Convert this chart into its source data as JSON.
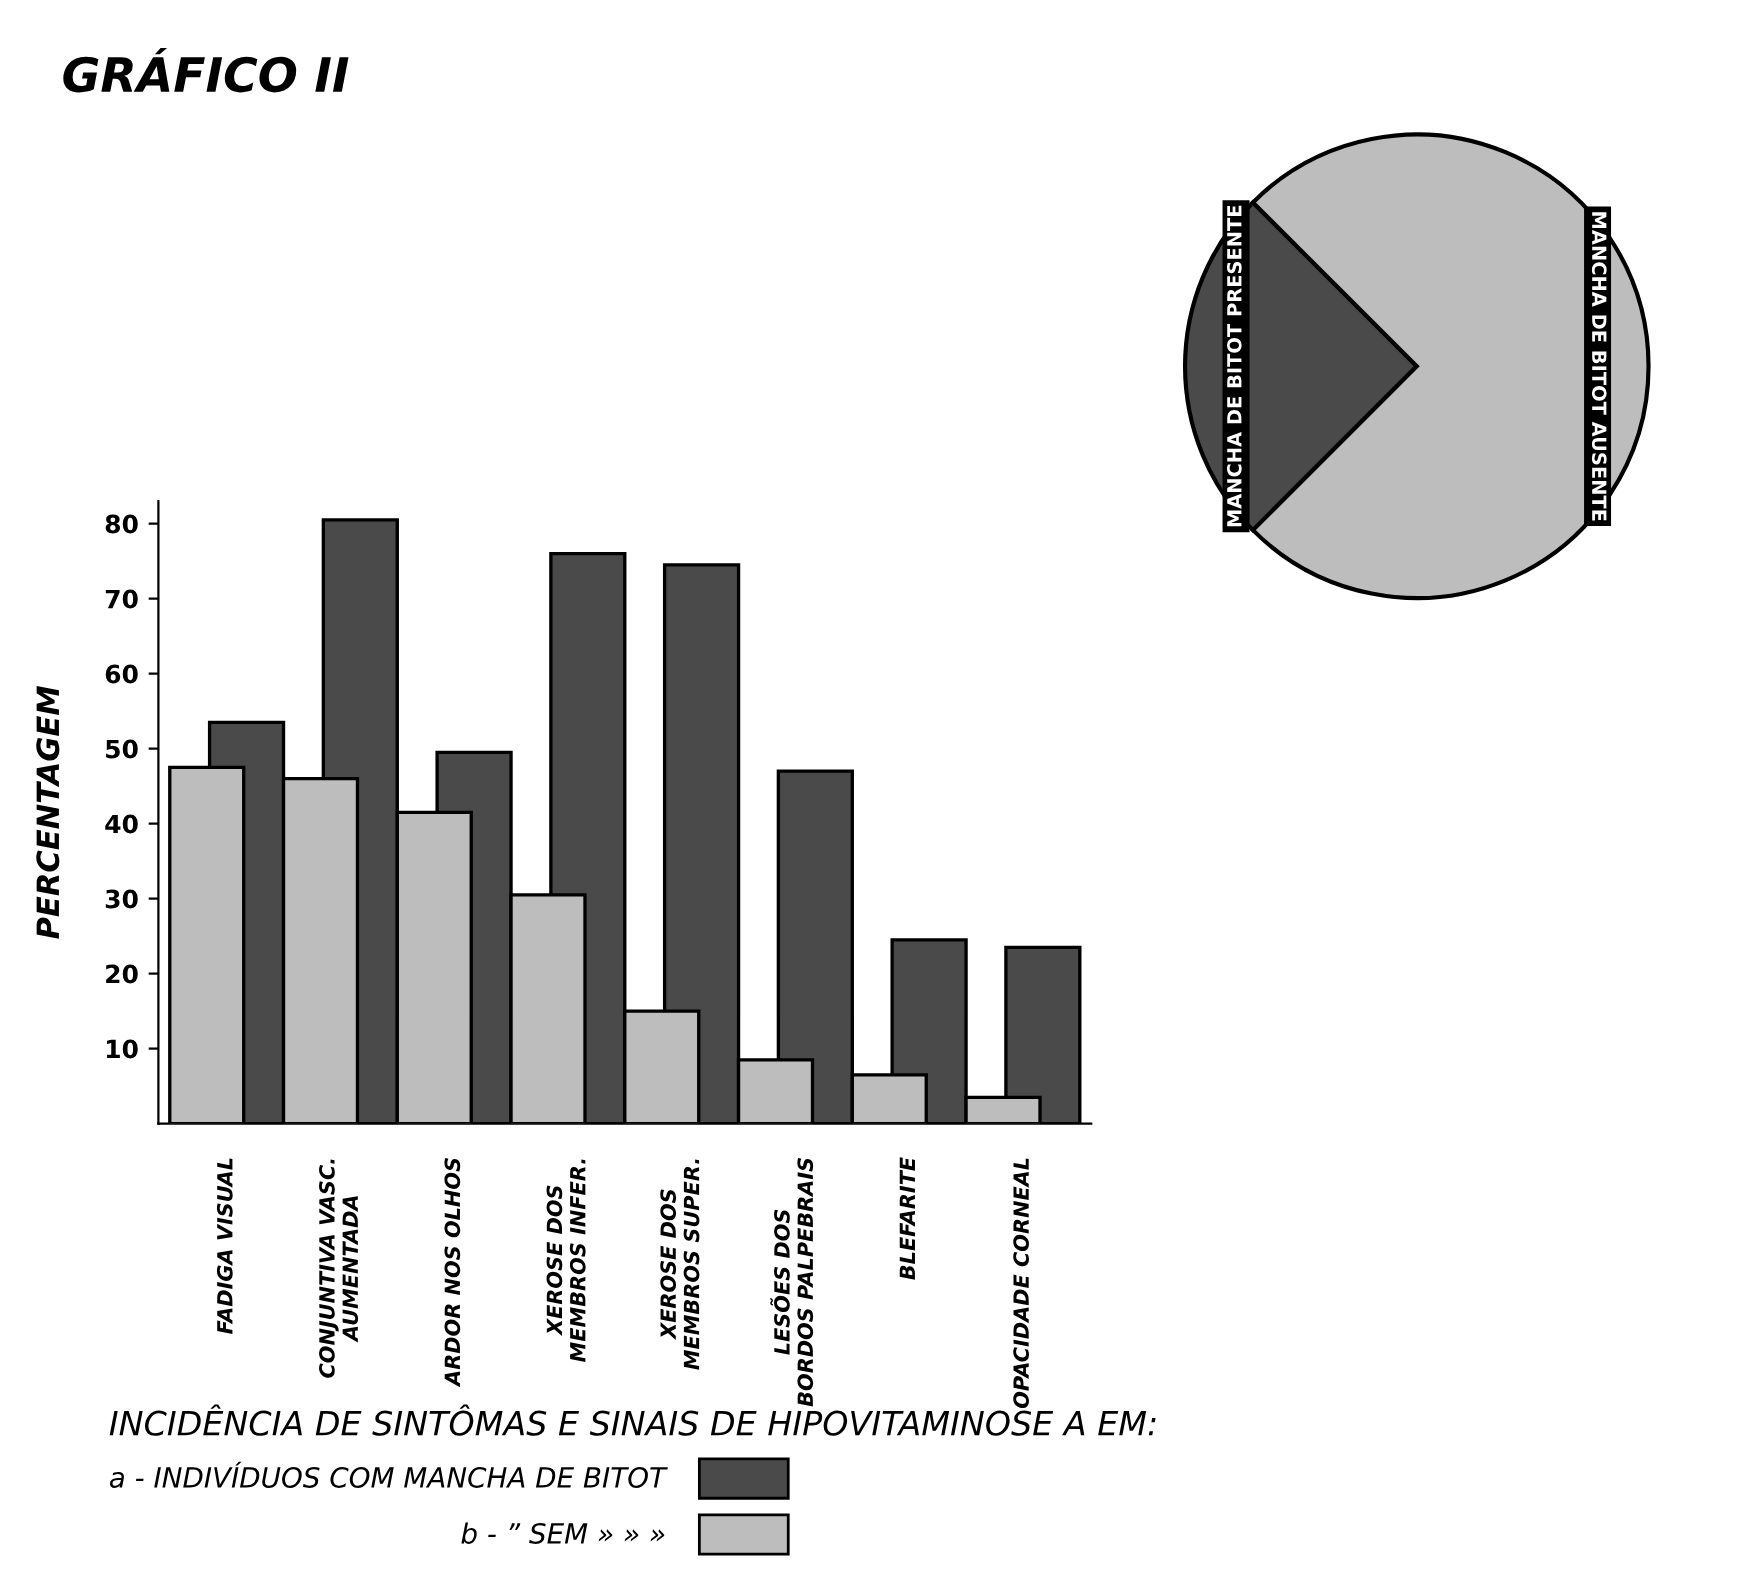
{
  "chart_data": [
    {
      "type": "bar",
      "title": "GRÁFICO II",
      "ylabel": "PERCENTAGEM",
      "categories": [
        "FADIGA VISUAL",
        "CONJUNTIVA VASC.\nAUMENTADA",
        "ARDOR NOS OLHOS",
        "XEROSE DOS\nMEMBROS INFER.",
        "XEROSE DOS\nMEMBROS SUPER.",
        "LESÕES DOS\nBORDOS PALPEBRAIS",
        "BLEFARITE",
        "OPACIDADE CORNEAL"
      ],
      "legend_title": "INCIDÊNCIA DE SINTÔMAS E SINAIS DE HIPOVITAMINOSE A EM:",
      "series": [
        {
          "name": "a - INDIVÍDUOS COM MANCHA DE BITOT",
          "color": "#4a4a4a",
          "values": [
            53.5,
            80.5,
            49.5,
            76,
            74.5,
            47,
            24.5,
            23.5
          ]
        },
        {
          "name": "b - ” SEM » » »",
          "color": "#bdbdbd",
          "values": [
            47.5,
            46,
            41.5,
            30.5,
            15,
            8.5,
            6.5,
            3.5
          ]
        }
      ],
      "ylim": [
        0,
        83
      ],
      "yticks": [
        10,
        20,
        30,
        40,
        50,
        60,
        70,
        80
      ],
      "grid": false,
      "legend": "bottom"
    },
    {
      "type": "pie",
      "categories": [
        "MANCHA DE BITOT PRESENTE",
        "MANCHA DE BITOT AUSENTE"
      ],
      "values": [
        25,
        75
      ],
      "colors": [
        "#4a4a4a",
        "#bdbdbd"
      ]
    }
  ]
}
